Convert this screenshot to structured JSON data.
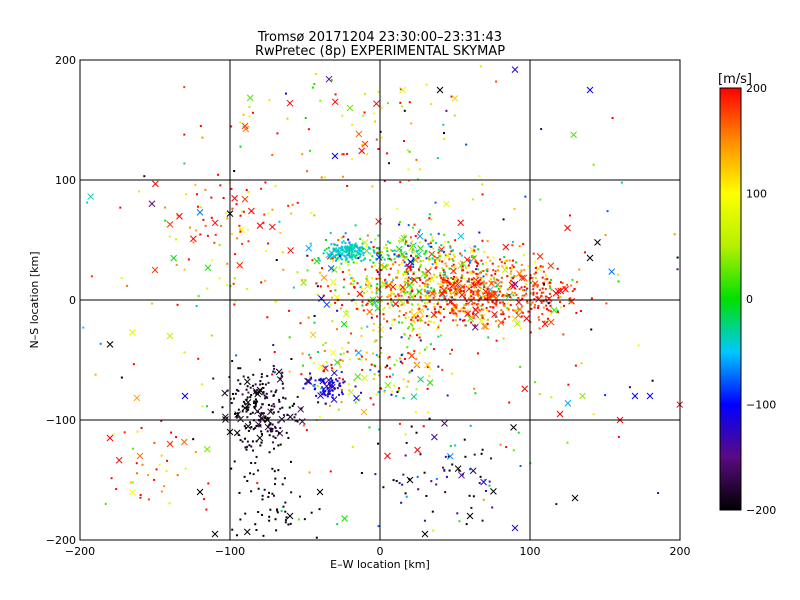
{
  "chart_data": {
    "type": "scatter",
    "title": "Tromsø 20171204 23:30:00–23:31:43",
    "subtitle": "RwPretec (8p) EXPERIMENTAL SKYMAP",
    "xlabel": "E–W location [km]",
    "ylabel": "N–S location [km]",
    "xlim": [
      -200,
      200
    ],
    "ylim": [
      -200,
      200
    ],
    "x_ticks": [
      "−200",
      "−100",
      "0",
      "100",
      "200"
    ],
    "y_ticks": [
      "−200",
      "−100",
      "0",
      "100",
      "200"
    ],
    "grid": true,
    "colorbar": {
      "label": "[m/s]",
      "range": [
        -200,
        200
      ],
      "ticks": [
        "200",
        "100",
        "0",
        "−100",
        "−200"
      ],
      "palette": [
        "#000000",
        "#5a0a82",
        "#0000ff",
        "#00c8ff",
        "#00e000",
        "#b4f000",
        "#ffff00",
        "#ff8c00",
        "#ff0000"
      ]
    },
    "markers": {
      "small": "dot",
      "large": "x"
    },
    "clusters": [
      {
        "x": 35,
        "y": 10,
        "sx": 38,
        "sy": 18,
        "n": 700,
        "v": 120,
        "vs": 90
      },
      {
        "x": 75,
        "y": 5,
        "sx": 25,
        "sy": 12,
        "n": 280,
        "v": 185,
        "vs": 25
      },
      {
        "x": 110,
        "y": 5,
        "sx": 12,
        "sy": 12,
        "n": 60,
        "v": 190,
        "vs": 20
      },
      {
        "x": -22,
        "y": 40,
        "sx": 7,
        "sy": 4,
        "n": 140,
        "v": -40,
        "vs": 8
      },
      {
        "x": 15,
        "y": 40,
        "sx": 25,
        "sy": 8,
        "n": 150,
        "v": -10,
        "vs": 60
      },
      {
        "x": -80,
        "y": -90,
        "sx": 12,
        "sy": 18,
        "n": 220,
        "v": -190,
        "vs": 15
      },
      {
        "x": -35,
        "y": -72,
        "sx": 8,
        "sy": 5,
        "n": 70,
        "v": -110,
        "vs": 15
      },
      {
        "x": -5,
        "y": -55,
        "sx": 25,
        "sy": 18,
        "n": 160,
        "v": 90,
        "vs": 110
      },
      {
        "x": -100,
        "y": 60,
        "sx": 25,
        "sy": 25,
        "n": 80,
        "v": 170,
        "vs": 60
      },
      {
        "x": -75,
        "y": -165,
        "sx": 15,
        "sy": 20,
        "n": 60,
        "v": -195,
        "vs": 8
      },
      {
        "x": 45,
        "y": -140,
        "sx": 25,
        "sy": 20,
        "n": 70,
        "v": -160,
        "vs": 70
      },
      {
        "x": -150,
        "y": -140,
        "sx": 20,
        "sy": 20,
        "n": 35,
        "v": 170,
        "vs": 60
      },
      {
        "x": -20,
        "y": 145,
        "sx": 40,
        "sy": 25,
        "n": 60,
        "v": 160,
        "vs": 90
      },
      {
        "x": 0,
        "y": 0,
        "sx": 110,
        "sy": 110,
        "n": 260,
        "v": 60,
        "vs": 150
      }
    ],
    "large_markers": [
      [
        -34,
        184,
        -140
      ],
      [
        -60,
        164,
        200
      ],
      [
        -90,
        145,
        180
      ],
      [
        -10,
        130,
        180
      ],
      [
        -30,
        120,
        -100
      ],
      [
        15,
        175,
        80
      ],
      [
        40,
        175,
        -200
      ],
      [
        50,
        168,
        120
      ],
      [
        90,
        192,
        -120
      ],
      [
        140,
        175,
        -100
      ],
      [
        -20,
        160,
        30
      ],
      [
        -120,
        73,
        -70
      ],
      [
        -100,
        72,
        -200
      ],
      [
        -80,
        62,
        200
      ],
      [
        -150,
        25,
        180
      ],
      [
        -140,
        63,
        180
      ],
      [
        -165,
        -27,
        80
      ],
      [
        -180,
        -37,
        -200
      ],
      [
        -140,
        -30,
        60
      ],
      [
        -130,
        -80,
        -100
      ],
      [
        -140,
        -120,
        180
      ],
      [
        -160,
        -130,
        160
      ],
      [
        -180,
        -115,
        200
      ],
      [
        -165,
        -160,
        100
      ],
      [
        -80,
        -75,
        -200
      ],
      [
        -90,
        -90,
        -200
      ],
      [
        -75,
        -100,
        -200
      ],
      [
        -100,
        -110,
        -200
      ],
      [
        -120,
        -160,
        -200
      ],
      [
        -110,
        -195,
        -200
      ],
      [
        -60,
        -180,
        -200
      ],
      [
        -40,
        -160,
        -200
      ],
      [
        20,
        -150,
        -200
      ],
      [
        30,
        -195,
        -200
      ],
      [
        60,
        -180,
        -200
      ],
      [
        90,
        -190,
        -120
      ],
      [
        130,
        -165,
        -200
      ],
      [
        160,
        -100,
        200
      ],
      [
        170,
        -80,
        -100
      ],
      [
        180,
        -80,
        -100
      ],
      [
        120,
        -95,
        200
      ],
      [
        135,
        -80,
        40
      ],
      [
        145,
        48,
        -200
      ],
      [
        140,
        35,
        -200
      ],
      [
        125,
        60,
        200
      ],
      [
        110,
        -20,
        200
      ],
      [
        5,
        -130,
        200
      ],
      [
        25,
        -125,
        200
      ]
    ]
  }
}
